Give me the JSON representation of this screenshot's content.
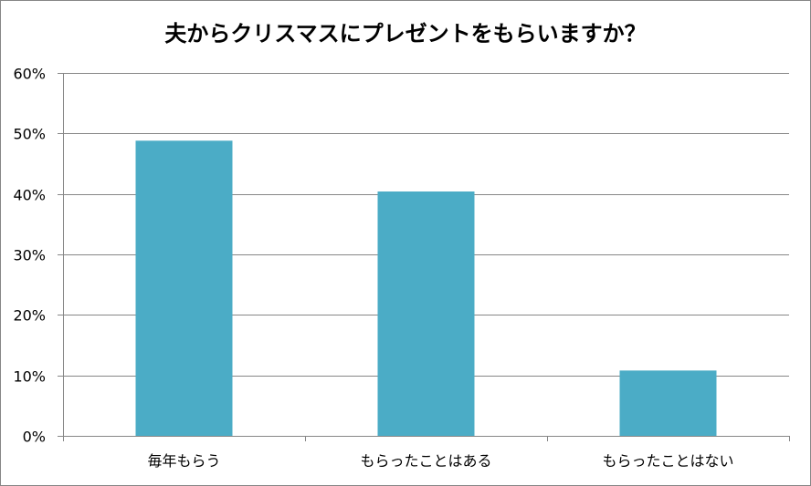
{
  "chart_data": {
    "type": "bar",
    "title": "夫からクリスマスにプレゼントをもらいますか？",
    "categories": [
      "毎年もらう",
      "もらったことはある",
      "もらったことはない"
    ],
    "values": [
      48.8,
      40.4,
      10.8
    ],
    "value_unit": "%",
    "ylim": [
      0,
      60
    ],
    "yticks": [
      "0%",
      "10%",
      "20%",
      "30%",
      "40%",
      "50%",
      "60%"
    ],
    "xlabel": "",
    "ylabel": "",
    "grid": true,
    "legend": "none",
    "bar_color": "#4BACC6",
    "grid_color": "#868686"
  }
}
